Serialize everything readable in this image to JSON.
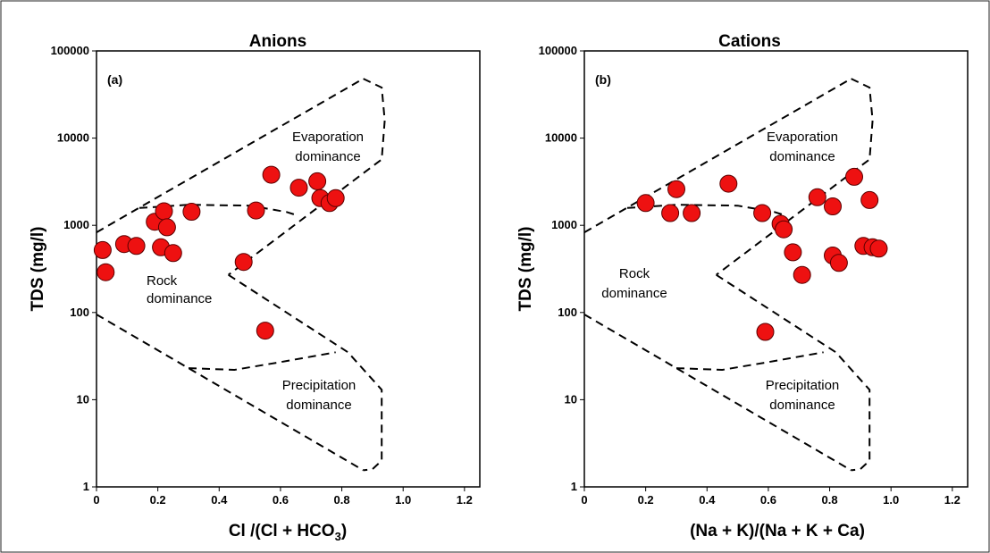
{
  "figure": {
    "border": true
  },
  "chart_data": [
    {
      "type": "scatter",
      "title": "Anions",
      "panel_label": "(a)",
      "xlabel": "Cl /(Cl + HCO3)",
      "xlabel_main": "Cl /(Cl + HCO",
      "xlabel_sub": "3",
      "xlabel_tail": ")",
      "ylabel": "TDS (mg/l)",
      "xlim": [
        0,
        1.25
      ],
      "ylim": [
        1,
        100000
      ],
      "yscale": "log",
      "x_ticks": [
        "0",
        "0.2",
        "0.4",
        "0.6",
        "0.8",
        "1.0",
        "1.2"
      ],
      "y_ticks": [
        "1",
        "10",
        "100",
        "1000",
        "10000",
        "100000"
      ],
      "grid": false,
      "marker_color": "#ee1111",
      "annotations": {
        "evaporation": [
          "Evaporation",
          "dominance"
        ],
        "rock": [
          "Rock",
          "dominance"
        ],
        "precipitation": [
          "Precipitation",
          "dominance"
        ]
      },
      "points": [
        {
          "x": 0.02,
          "y": 520
        },
        {
          "x": 0.03,
          "y": 290
        },
        {
          "x": 0.09,
          "y": 610
        },
        {
          "x": 0.13,
          "y": 580
        },
        {
          "x": 0.19,
          "y": 1100
        },
        {
          "x": 0.21,
          "y": 560
        },
        {
          "x": 0.22,
          "y": 1450
        },
        {
          "x": 0.23,
          "y": 950
        },
        {
          "x": 0.25,
          "y": 480
        },
        {
          "x": 0.31,
          "y": 1430
        },
        {
          "x": 0.48,
          "y": 380
        },
        {
          "x": 0.52,
          "y": 1480
        },
        {
          "x": 0.55,
          "y": 62
        },
        {
          "x": 0.57,
          "y": 3800
        },
        {
          "x": 0.66,
          "y": 2700
        },
        {
          "x": 0.72,
          "y": 3200
        },
        {
          "x": 0.73,
          "y": 2050
        },
        {
          "x": 0.76,
          "y": 1800
        },
        {
          "x": 0.78,
          "y": 2050
        }
      ]
    },
    {
      "type": "scatter",
      "title": "Cations",
      "panel_label": "(b)",
      "xlabel": "(Na + K)/(Na + K + Ca)",
      "ylabel": "TDS (mg/l)",
      "xlim": [
        0,
        1.25
      ],
      "ylim": [
        1,
        100000
      ],
      "yscale": "log",
      "x_ticks": [
        "0",
        "0.2",
        "0.4",
        "0.6",
        "0.8",
        "1.0",
        "1.2"
      ],
      "y_ticks": [
        "1",
        "10",
        "100",
        "1000",
        "10000",
        "100000"
      ],
      "grid": false,
      "marker_color": "#ee1111",
      "annotations": {
        "evaporation": [
          "Evaporation",
          "dominance"
        ],
        "rock": [
          "Rock",
          "dominance"
        ],
        "precipitation": [
          "Precipitation",
          "dominance"
        ]
      },
      "points": [
        {
          "x": 0.2,
          "y": 1800
        },
        {
          "x": 0.28,
          "y": 1380
        },
        {
          "x": 0.3,
          "y": 2600
        },
        {
          "x": 0.35,
          "y": 1380
        },
        {
          "x": 0.47,
          "y": 3000
        },
        {
          "x": 0.58,
          "y": 1380
        },
        {
          "x": 0.59,
          "y": 60
        },
        {
          "x": 0.64,
          "y": 1040
        },
        {
          "x": 0.65,
          "y": 900
        },
        {
          "x": 0.68,
          "y": 490
        },
        {
          "x": 0.71,
          "y": 270
        },
        {
          "x": 0.76,
          "y": 2100
        },
        {
          "x": 0.81,
          "y": 1650
        },
        {
          "x": 0.81,
          "y": 450
        },
        {
          "x": 0.83,
          "y": 370
        },
        {
          "x": 0.88,
          "y": 3600
        },
        {
          "x": 0.91,
          "y": 580
        },
        {
          "x": 0.93,
          "y": 1950
        },
        {
          "x": 0.94,
          "y": 560
        },
        {
          "x": 0.96,
          "y": 540
        }
      ]
    }
  ]
}
